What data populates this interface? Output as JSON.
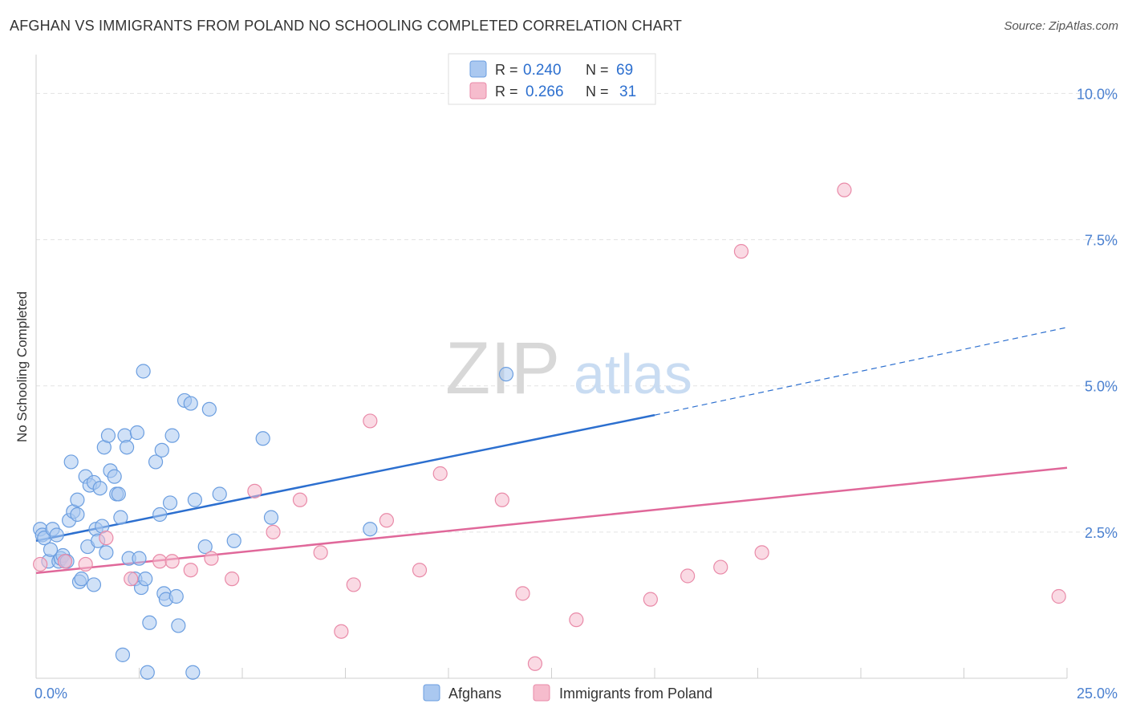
{
  "title": "AFGHAN VS IMMIGRANTS FROM POLAND NO SCHOOLING COMPLETED CORRELATION CHART",
  "source": "Source: ZipAtlas.com",
  "watermark": {
    "zip": "ZIP",
    "atlas": "atlas"
  },
  "colors": {
    "blue_fill": "#aac8f0",
    "blue_stroke": "#6b9ee0",
    "blue_line": "#2c6fcf",
    "pink_fill": "#f6bccd",
    "pink_stroke": "#e98aa8",
    "pink_line": "#e0689a",
    "tick_label": "#4a80d0",
    "grid": "#e3e3e3"
  },
  "legend_top": {
    "rows": [
      {
        "r_label": "R =",
        "r_value": "0.240",
        "n_label": "N =",
        "n_value": "69",
        "swatch": "blue"
      },
      {
        "r_label": "R =",
        "r_value": "0.266",
        "n_label": "N =",
        "n_value": "31",
        "swatch": "pink"
      }
    ]
  },
  "legend_bottom": {
    "items": [
      {
        "label": "Afghans",
        "swatch": "blue"
      },
      {
        "label": "Immigrants from Poland",
        "swatch": "pink"
      }
    ]
  },
  "chart_data": {
    "type": "scatter",
    "title": "AFGHAN VS IMMIGRANTS FROM POLAND NO SCHOOLING COMPLETED CORRELATION CHART",
    "xlabel": "",
    "ylabel": "No Schooling Completed",
    "xlim": [
      0,
      25
    ],
    "ylim": [
      0,
      10.5
    ],
    "x_tick_labels": [
      {
        "value": 0,
        "label": "0.0%"
      },
      {
        "value": 25,
        "label": "25.0%"
      }
    ],
    "y_tick_labels": [
      {
        "value": 2.5,
        "label": "2.5%"
      },
      {
        "value": 5.0,
        "label": "5.0%"
      },
      {
        "value": 7.5,
        "label": "7.5%"
      },
      {
        "value": 10.0,
        "label": "10.0%"
      }
    ],
    "grid": true,
    "legend_placement": "top-center",
    "series": [
      {
        "name": "Afghans",
        "color": "blue",
        "points": [
          [
            0.1,
            2.55
          ],
          [
            0.15,
            2.45
          ],
          [
            0.2,
            2.4
          ],
          [
            0.3,
            2.0
          ],
          [
            0.35,
            2.2
          ],
          [
            0.4,
            2.55
          ],
          [
            0.5,
            2.45
          ],
          [
            0.55,
            2.0
          ],
          [
            0.6,
            2.05
          ],
          [
            0.65,
            2.1
          ],
          [
            0.7,
            2.0
          ],
          [
            0.75,
            2.0
          ],
          [
            0.8,
            2.7
          ],
          [
            0.9,
            2.85
          ],
          [
            0.85,
            3.7
          ],
          [
            1.0,
            2.8
          ],
          [
            1.0,
            3.05
          ],
          [
            1.05,
            1.65
          ],
          [
            1.1,
            1.7
          ],
          [
            1.2,
            3.45
          ],
          [
            1.25,
            2.25
          ],
          [
            1.3,
            3.3
          ],
          [
            1.4,
            3.35
          ],
          [
            1.4,
            1.6
          ],
          [
            1.45,
            2.55
          ],
          [
            1.5,
            2.35
          ],
          [
            1.55,
            3.25
          ],
          [
            1.6,
            2.6
          ],
          [
            1.65,
            3.95
          ],
          [
            1.7,
            2.15
          ],
          [
            1.75,
            4.15
          ],
          [
            1.8,
            3.55
          ],
          [
            1.9,
            3.45
          ],
          [
            1.95,
            3.15
          ],
          [
            2.0,
            3.15
          ],
          [
            2.05,
            2.75
          ],
          [
            2.1,
            0.4
          ],
          [
            2.15,
            4.15
          ],
          [
            2.2,
            3.95
          ],
          [
            2.25,
            2.05
          ],
          [
            2.4,
            1.7
          ],
          [
            2.45,
            4.2
          ],
          [
            2.5,
            2.05
          ],
          [
            2.55,
            1.55
          ],
          [
            2.6,
            5.25
          ],
          [
            2.65,
            1.7
          ],
          [
            2.7,
            0.1
          ],
          [
            2.75,
            0.95
          ],
          [
            2.9,
            3.7
          ],
          [
            3.0,
            2.8
          ],
          [
            3.05,
            3.9
          ],
          [
            3.1,
            1.45
          ],
          [
            3.15,
            1.35
          ],
          [
            3.25,
            3.0
          ],
          [
            3.3,
            4.15
          ],
          [
            3.4,
            1.4
          ],
          [
            3.45,
            0.9
          ],
          [
            3.6,
            4.75
          ],
          [
            3.75,
            4.7
          ],
          [
            3.8,
            0.1
          ],
          [
            3.85,
            3.05
          ],
          [
            4.1,
            2.25
          ],
          [
            4.2,
            4.6
          ],
          [
            4.45,
            3.15
          ],
          [
            4.8,
            2.35
          ],
          [
            5.5,
            4.1
          ],
          [
            5.7,
            2.75
          ],
          [
            8.1,
            2.55
          ],
          [
            11.4,
            5.2
          ]
        ]
      },
      {
        "name": "Immigrants from Poland",
        "color": "pink",
        "points": [
          [
            0.1,
            1.95
          ],
          [
            0.7,
            2.0
          ],
          [
            1.2,
            1.95
          ],
          [
            1.7,
            2.4
          ],
          [
            2.3,
            1.7
          ],
          [
            3.0,
            2.0
          ],
          [
            3.3,
            2.0
          ],
          [
            3.75,
            1.85
          ],
          [
            4.25,
            2.05
          ],
          [
            4.75,
            1.7
          ],
          [
            5.3,
            3.2
          ],
          [
            5.75,
            2.5
          ],
          [
            6.4,
            3.05
          ],
          [
            6.9,
            2.15
          ],
          [
            7.4,
            0.8
          ],
          [
            7.7,
            1.6
          ],
          [
            8.1,
            4.4
          ],
          [
            8.5,
            2.7
          ],
          [
            9.3,
            1.85
          ],
          [
            9.8,
            3.5
          ],
          [
            11.3,
            3.05
          ],
          [
            11.8,
            1.45
          ],
          [
            12.1,
            0.25
          ],
          [
            13.1,
            1.0
          ],
          [
            14.9,
            1.35
          ],
          [
            15.8,
            1.75
          ],
          [
            16.6,
            1.9
          ],
          [
            17.1,
            7.3
          ],
          [
            17.6,
            2.15
          ],
          [
            19.6,
            8.35
          ],
          [
            24.8,
            1.4
          ]
        ]
      }
    ],
    "trend_lines": [
      {
        "series": "Afghans",
        "x_start": 0,
        "y_start": 2.35,
        "x_solid_end": 15,
        "y_solid_end": 4.5,
        "x_end": 25,
        "y_end": 6.0
      },
      {
        "series": "Immigrants from Poland",
        "x_start": 0,
        "y_start": 1.8,
        "x_end": 25,
        "y_end": 3.6
      }
    ]
  }
}
